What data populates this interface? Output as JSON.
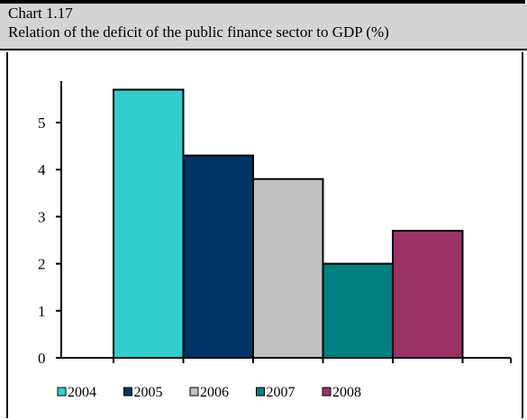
{
  "header": {
    "chart_number": "Chart 1.17",
    "title": "Relation of the deficit of the public finance sector to GDP (%)"
  },
  "chart_data": {
    "type": "bar",
    "title": "Relation of the deficit of the public finance sector to GDP (%)",
    "categories": [
      "2004",
      "2005",
      "2006",
      "2007",
      "2008"
    ],
    "values": [
      5.7,
      4.3,
      3.8,
      2.0,
      2.7
    ],
    "colors": [
      "#33cccc",
      "#003366",
      "#c0c0c0",
      "#008080",
      "#993366"
    ],
    "yticks": [
      "0",
      "1",
      "2",
      "3",
      "4",
      "5"
    ],
    "ylim": [
      0,
      6
    ],
    "legend": [
      "2004",
      "2005",
      "2006",
      "2007",
      "2008"
    ],
    "legend_position": "bottom",
    "grid": false
  }
}
